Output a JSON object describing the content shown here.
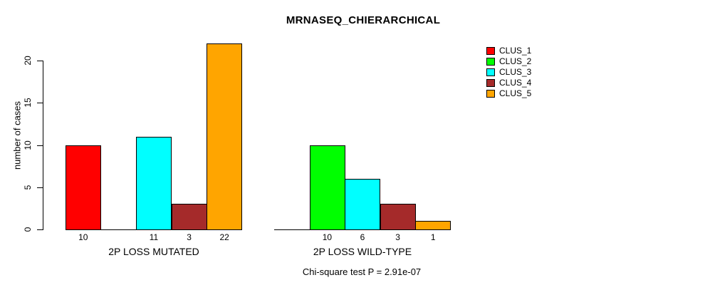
{
  "chart_data": {
    "type": "bar",
    "title": "MRNASEQ_CHIERARCHICAL",
    "ylabel": "number of cases",
    "ylim": [
      0,
      22
    ],
    "yticks": [
      0,
      5,
      10,
      15,
      20
    ],
    "grid": false,
    "categories": [
      "CLUS_1",
      "CLUS_2",
      "CLUS_3",
      "CLUS_4",
      "CLUS_5"
    ],
    "colors": [
      "#FF0000",
      "#00FF00",
      "#00FFFF",
      "#A52A2A",
      "#FFA500"
    ],
    "groups": [
      {
        "label": "2P LOSS MUTATED",
        "values": [
          10,
          0,
          11,
          3,
          22
        ]
      },
      {
        "label": "2P LOSS WILD-TYPE",
        "values": [
          0,
          10,
          6,
          3,
          1
        ]
      }
    ],
    "bar_value_labels_note": "each bar's value printed under its slot; zero-value slots are empty with no label",
    "legend": {
      "position": "right",
      "entries": [
        {
          "label": "CLUS_1",
          "color": "#FF0000"
        },
        {
          "label": "CLUS_2",
          "color": "#00FF00"
        },
        {
          "label": "CLUS_3",
          "color": "#00FFFF"
        },
        {
          "label": "CLUS_4",
          "color": "#A52A2A"
        },
        {
          "label": "CLUS_5",
          "color": "#FFA500"
        }
      ]
    },
    "annotation": "Chi-square test P = 2.91e-07"
  }
}
